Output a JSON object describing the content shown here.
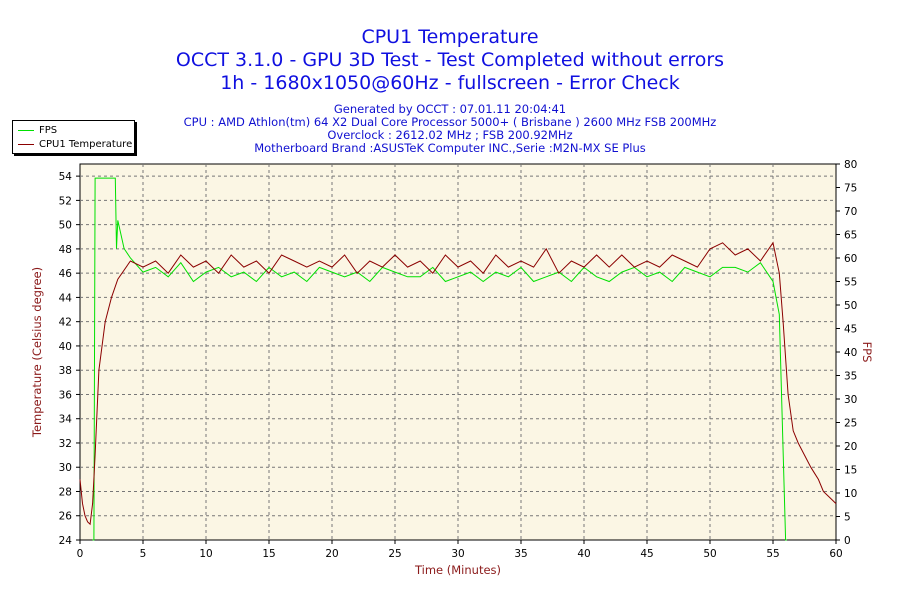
{
  "chart_data": {
    "type": "line",
    "title": "CPU1 Temperature",
    "subtitle": [
      "OCCT 3.1.0 - GPU 3D Test - Test Completed without errors",
      "1h - 1680x1050@60Hz - fullscreen - Error Check"
    ],
    "info": [
      "Generated by OCCT : 07.01.11 20:04:41",
      "CPU : AMD Athlon(tm) 64 X2 Dual Core Processor 5000+ ( Brisbane ) 2600 MHz FSB 200MHz",
      "Overclock : 2612.02 MHz ; FSB 200.92MHz",
      "Motherboard Brand :ASUSTeK Computer INC.,Serie :M2N-MX SE Plus"
    ],
    "xlabel": "Time (Minutes)",
    "ylabel_left": "Temperature (Celsius degree)",
    "ylabel_right": "FPS",
    "xlim": [
      0,
      60
    ],
    "ylim_left": [
      24,
      55
    ],
    "ylim_right": [
      0,
      80
    ],
    "x_ticks": [
      0,
      5,
      10,
      15,
      20,
      25,
      30,
      35,
      40,
      45,
      50,
      55,
      60
    ],
    "y_left_ticks": [
      24,
      26,
      28,
      30,
      32,
      34,
      36,
      38,
      40,
      42,
      44,
      46,
      48,
      50,
      52,
      54
    ],
    "y_right_ticks": [
      0,
      5,
      10,
      15,
      20,
      25,
      30,
      35,
      40,
      45,
      50,
      55,
      60,
      65,
      70,
      75,
      80
    ],
    "grid": true,
    "legend_position": "top-left",
    "series": [
      {
        "name": "FPS",
        "axis": "right",
        "color": "#00e000",
        "x": [
          0,
          1.0,
          1.1,
          1.2,
          2.8,
          2.9,
          3.0,
          3.5,
          4,
          5,
          6,
          7,
          8,
          9,
          10,
          11,
          12,
          13,
          14,
          15,
          16,
          17,
          18,
          19,
          20,
          21,
          22,
          23,
          24,
          25,
          26,
          27,
          28,
          29,
          30,
          31,
          32,
          33,
          34,
          35,
          36,
          37,
          38,
          39,
          40,
          41,
          42,
          43,
          44,
          45,
          46,
          47,
          48,
          49,
          50,
          51,
          52,
          53,
          54,
          55,
          55.5,
          56.0,
          56.1
        ],
        "values": [
          null,
          0,
          0,
          77,
          77,
          62,
          68,
          62,
          60,
          57,
          58,
          56,
          59,
          55,
          57,
          58,
          56,
          57,
          55,
          58,
          56,
          57,
          55,
          58,
          57,
          56,
          57,
          55,
          58,
          57,
          56,
          56,
          58,
          55,
          56,
          57,
          55,
          57,
          56,
          58,
          55,
          56,
          57,
          55,
          58,
          56,
          55,
          57,
          58,
          56,
          57,
          55,
          58,
          57,
          56,
          58,
          58,
          57,
          59,
          55,
          48,
          0,
          0
        ]
      },
      {
        "name": "CPU1 Temperature",
        "axis": "left",
        "color": "#8b0000",
        "x": [
          0,
          0.2,
          0.4,
          0.6,
          0.8,
          1.0,
          1.2,
          1.5,
          2.0,
          2.5,
          3,
          4,
          5,
          6,
          7,
          8,
          9,
          10,
          11,
          12,
          13,
          14,
          15,
          16,
          17,
          18,
          19,
          20,
          21,
          22,
          23,
          24,
          25,
          26,
          27,
          28,
          29,
          30,
          31,
          32,
          33,
          34,
          35,
          36,
          37,
          38,
          39,
          40,
          41,
          42,
          43,
          44,
          45,
          46,
          47,
          48,
          49,
          50,
          51,
          52,
          53,
          54,
          55,
          55.5,
          55.8,
          56.2,
          56.6,
          57,
          57.5,
          58,
          58.3,
          58.6,
          59,
          59.5,
          60
        ],
        "values": [
          29,
          27,
          26,
          25.5,
          25.3,
          27,
          31,
          38,
          42,
          44,
          45.5,
          47,
          46.5,
          47,
          46,
          47.5,
          46.5,
          47,
          46,
          47.5,
          46.5,
          47,
          46,
          47.5,
          47,
          46.5,
          47,
          46.5,
          47.5,
          46,
          47,
          46.5,
          47.5,
          46.5,
          47,
          46,
          47.5,
          46.5,
          47,
          46,
          47.5,
          46.5,
          47,
          46.5,
          48,
          46,
          47,
          46.5,
          47.5,
          46.5,
          47.5,
          46.5,
          47,
          46.5,
          47.5,
          47,
          46.5,
          48,
          48.5,
          47.5,
          48,
          47,
          48.5,
          46,
          42,
          36,
          33,
          32,
          31,
          30,
          29.5,
          29,
          28,
          27.5,
          27
        ]
      }
    ]
  }
}
